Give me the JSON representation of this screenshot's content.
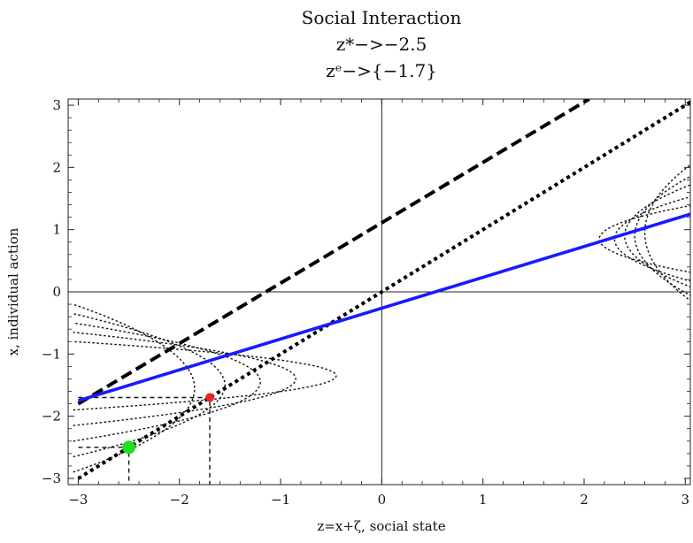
{
  "chart_data": {
    "type": "line",
    "title_lines": [
      "Social Interaction",
      "z*−>−2.5",
      "zᵉ−>{−1.7}"
    ],
    "xlabel": "z=x+ζ, social state",
    "ylabel": "x, individual action",
    "xlim": [
      -3.1,
      3.05
    ],
    "ylim": [
      -3.1,
      3.1
    ],
    "x_ticks": [
      -3,
      -2,
      -1,
      0,
      1,
      2,
      3
    ],
    "y_ticks": [
      -3,
      -2,
      -1,
      0,
      1,
      2,
      3
    ],
    "x_tick_labels": [
      "−3",
      "−2",
      "−1",
      "0",
      "1",
      "2",
      "3"
    ],
    "y_tick_labels": [
      "−3",
      "−2",
      "−1",
      "0",
      "1",
      "2",
      "3"
    ],
    "grid": false,
    "series": [
      {
        "style": "dashed-thick",
        "color": "#000000",
        "points": [
          [
            -3.0,
            -1.8
          ],
          [
            2.05,
            3.1
          ]
        ]
      },
      {
        "style": "dotted-thick",
        "color": "#000000",
        "points": [
          [
            -3.0,
            -3.0
          ],
          [
            3.05,
            3.05
          ]
        ]
      },
      {
        "style": "solid",
        "color": "#1a1aff",
        "points": [
          [
            -3.0,
            -1.75
          ],
          [
            3.05,
            1.25
          ]
        ]
      }
    ],
    "reference_lines": [
      {
        "style": "dashed-thin",
        "points": [
          [
            -3.0,
            -2.5
          ],
          [
            -2.5,
            -2.5
          ],
          [
            -2.5,
            -3.1
          ]
        ]
      },
      {
        "style": "dashed-thin",
        "points": [
          [
            -3.0,
            -1.7
          ],
          [
            -1.7,
            -1.7
          ],
          [
            -1.7,
            -3.1
          ]
        ]
      }
    ],
    "contour_groups": [
      {
        "location": "left",
        "style": "dotted-thin",
        "curves": [
          {
            "x0": -3.0,
            "b": 2.6,
            "yc": -1.35,
            "h": 0.55,
            "dx": -0.05
          },
          {
            "x0": -3.0,
            "b": 2.2,
            "yc": -1.4,
            "h": 0.75,
            "dx": -0.05
          },
          {
            "x0": -3.0,
            "b": 1.85,
            "yc": -1.45,
            "h": 0.95,
            "dx": -0.05
          },
          {
            "x0": -3.0,
            "b": 1.5,
            "yc": -1.5,
            "h": 1.15,
            "dx": -0.05
          },
          {
            "x0": -3.0,
            "b": 1.2,
            "yc": -1.55,
            "h": 1.35,
            "dx": -0.05
          }
        ]
      },
      {
        "location": "right",
        "style": "dotted-thin",
        "curves": [
          {
            "x0": 3.05,
            "b": 0.95,
            "yc": 0.85,
            "h": 0.55,
            "dx": 0.05
          },
          {
            "x0": 3.05,
            "b": 0.8,
            "yc": 0.85,
            "h": 0.7,
            "dx": 0.05
          },
          {
            "x0": 3.05,
            "b": 0.7,
            "yc": 0.9,
            "h": 0.85,
            "dx": 0.05
          },
          {
            "x0": 3.05,
            "b": 0.6,
            "yc": 0.9,
            "h": 1.0,
            "dx": 0.05
          },
          {
            "x0": 3.05,
            "b": 0.5,
            "yc": 0.95,
            "h": 1.15,
            "dx": 0.05
          }
        ]
      }
    ],
    "points": [
      {
        "name": "z*",
        "x": -2.5,
        "y": -2.5,
        "color": "#22dd22",
        "size": "large"
      },
      {
        "name": "ze",
        "x": -1.7,
        "y": -1.7,
        "color": "#ee2222",
        "size": "small"
      }
    ]
  }
}
